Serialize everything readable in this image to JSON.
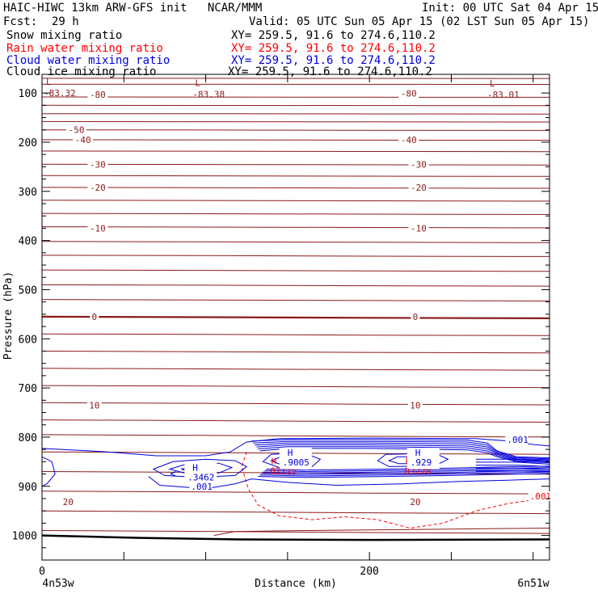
{
  "header": {
    "title": "HAIC-HIWC 13km ARW-GFS init   NCAR/MMM",
    "init": "Init: 00 UTC Sat 04 Apr 15",
    "fcst_label": "Fcst:",
    "fcst_value": "29 h",
    "valid": "Valid: 05 UTC Sun 05 Apr 15 (02 LST Sun 05 Apr 15)",
    "fields": [
      {
        "name": "Snow mixing ratio",
        "xy": "XY= 259.5, 91.6 to 274.6,110.2",
        "color": "#000000"
      },
      {
        "name": "Rain water mixing ratio",
        "xy": "XY= 259.5, 91.6 to 274.6,110.2",
        "color": "#ff0000"
      },
      {
        "name": "Cloud water mixing ratio",
        "xy": "XY= 259.5, 91.6 to 274.6,110.2",
        "color": "#0000dd"
      },
      {
        "name": "Cloud ice mixing ratio",
        "xy": "XY= 259.5, 91.6 to 274.6,110.2",
        "color": "#000000"
      }
    ]
  },
  "chart_data": {
    "type": "cross-section contour",
    "xlabel": "Distance (km)",
    "ylabel": "Pressure (hPa)",
    "x_ticks": [
      0,
      50,
      100,
      150,
      200,
      250,
      300
    ],
    "x_tick_labels": [
      {
        "x": 0,
        "label": "0"
      },
      {
        "x": 200,
        "label": "200"
      }
    ],
    "xlim": [
      0,
      310
    ],
    "ylim": [
      1050,
      62
    ],
    "y_ticks": [
      100,
      200,
      300,
      400,
      500,
      600,
      700,
      800,
      900,
      1000
    ],
    "y_minor_ticks": [
      125,
      150,
      175,
      225,
      250,
      275,
      325,
      350,
      375,
      425,
      450,
      475,
      525,
      550,
      575,
      625,
      650,
      675,
      725,
      750,
      775,
      825,
      850,
      875,
      925,
      950,
      975,
      1025
    ],
    "endpoint_labels": {
      "left": "4n53w",
      "right": "6n51w"
    },
    "colors": {
      "temperature": "#8b1a1a",
      "rain": "#ff0000",
      "cloud_water": "#0000dd",
      "ground": "#000000",
      "frame": "#000000"
    },
    "temperature_isotherms": {
      "levels": [
        -80,
        -70,
        -60,
        -50,
        -40,
        -30,
        -20,
        -10,
        0,
        10,
        20
      ],
      "pressures": [
        70,
        82,
        108,
        125,
        142,
        158,
        175,
        195,
        218,
        245,
        268,
        292,
        318,
        345,
        372,
        402,
        430,
        460,
        490,
        520,
        555,
        590,
        625,
        660,
        695,
        730,
        765,
        795,
        830,
        870,
        910,
        950,
        990
      ],
      "labels": [
        {
          "text": "-80",
          "x": 34,
          "p": 103
        },
        {
          "text": "-80",
          "x": 224,
          "p": 101
        },
        {
          "text": "-50",
          "x": 21,
          "p": 175
        },
        {
          "text": "-40",
          "x": 25,
          "p": 195
        },
        {
          "text": "-40",
          "x": 224,
          "p": 195
        },
        {
          "text": "-30",
          "x": 34,
          "p": 245
        },
        {
          "text": "-30",
          "x": 230,
          "p": 245
        },
        {
          "text": "-20",
          "x": 34,
          "p": 292
        },
        {
          "text": "-20",
          "x": 230,
          "p": 292
        },
        {
          "text": "-10",
          "x": 34,
          "p": 375
        },
        {
          "text": "-10",
          "x": 230,
          "p": 375
        },
        {
          "text": "0",
          "x": 32,
          "p": 555
        },
        {
          "text": "0",
          "x": 228,
          "p": 555
        },
        {
          "text": "10",
          "x": 32,
          "p": 735
        },
        {
          "text": "10",
          "x": 228,
          "p": 735
        },
        {
          "text": "20",
          "x": 16,
          "p": 932
        },
        {
          "text": "20",
          "x": 228,
          "p": 932
        }
      ]
    },
    "lows": [
      {
        "marker": "L",
        "value": "-83.32",
        "x": 1,
        "p": 77
      },
      {
        "marker": "L",
        "value": "-83.38",
        "x": 92,
        "p": 79
      },
      {
        "marker": "L",
        "value": "-83.01",
        "x": 272,
        "p": 80
      }
    ],
    "rain_water": {
      "contour_label": ".001",
      "label_position": {
        "x": 298,
        "p": 920
      },
      "maxima": [
        {
          "marker": "H",
          "value": ".02115",
          "x": 140,
          "p": 862
        },
        {
          "marker": "H",
          "value": ".03228",
          "x": 222,
          "p": 862
        }
      ]
    },
    "cloud_water": {
      "contour_label": ".001",
      "label_positions": [
        {
          "x": 91,
          "p": 900
        },
        {
          "x": 284,
          "p": 805
        }
      ],
      "maxima": [
        {
          "marker": "H",
          "value": ".3462",
          "x": 89,
          "p": 865
        },
        {
          "marker": "H",
          "value": ".9005",
          "x": 147,
          "p": 835
        },
        {
          "marker": "H",
          "value": ".929",
          "x": 225,
          "p": 835
        }
      ]
    }
  }
}
